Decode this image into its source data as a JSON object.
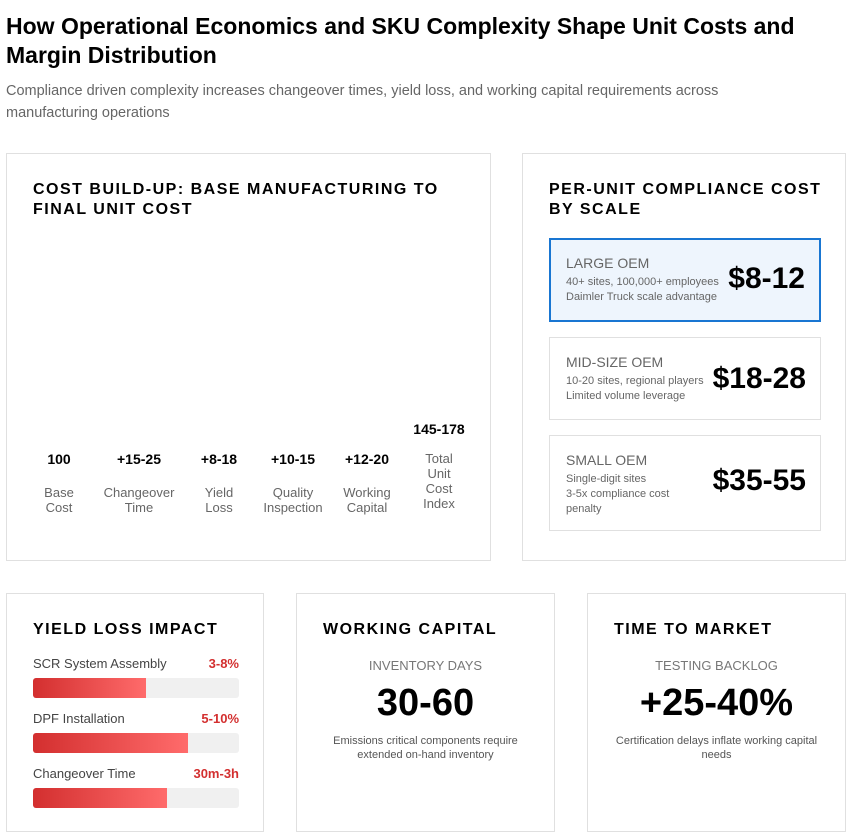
{
  "header": {
    "title": "How Operational Economics and SKU Complexity Shape Unit Costs and Margin Distribution",
    "subtitle": "Compliance driven complexity increases changeover times, yield loss, and working capital requirements across manufacturing operations"
  },
  "cost_buildup": {
    "title": "COST BUILD-UP: BASE MANUFACTURING TO FINAL UNIT COST",
    "steps": [
      {
        "value": "100",
        "label": "Base Cost"
      },
      {
        "value": "+15-25",
        "label": "Changeover Time"
      },
      {
        "value": "+8-18",
        "label": "Yield Loss"
      },
      {
        "value": "+10-15",
        "label": "Quality Inspection"
      },
      {
        "value": "+12-20",
        "label": "Working Capital"
      },
      {
        "value": "145-178",
        "label": "Total Unit Cost Index"
      }
    ]
  },
  "scale": {
    "title": "PER-UNIT COMPLIANCE COST BY SCALE",
    "tiers": [
      {
        "name": "LARGE OEM",
        "line1": "40+ sites, 100,000+ employees",
        "line2": "Daimler Truck scale advantage",
        "price": "$8-12"
      },
      {
        "name": "MID-SIZE OEM",
        "line1": "10-20 sites, regional players",
        "line2": "Limited volume leverage",
        "price": "$18-28"
      },
      {
        "name": "SMALL OEM",
        "line1": "Single-digit sites",
        "line2": "3-5x compliance cost penalty",
        "price": "$35-55"
      }
    ]
  },
  "yield": {
    "title": "YIELD LOSS IMPACT",
    "items": [
      {
        "label": "SCR System Assembly",
        "value": "3-8%",
        "fill_pct": 55
      },
      {
        "label": "DPF Installation",
        "value": "5-10%",
        "fill_pct": 75
      },
      {
        "label": "Changeover Time",
        "value": "30m-3h",
        "fill_pct": 65
      }
    ]
  },
  "working_capital": {
    "title": "WORKING CAPITAL",
    "kicker": "INVENTORY DAYS",
    "value": "30-60",
    "note": "Emissions critical components require extended on-hand inventory"
  },
  "time_to_market": {
    "title": "TIME TO MARKET",
    "kicker": "TESTING BACKLOG",
    "value": "+25-40%",
    "note": "Certification delays inflate working capital needs"
  },
  "colors": {
    "accent": "#1976d2",
    "bar_start": "#d32f2f",
    "bar_end": "#ff6b6b"
  }
}
